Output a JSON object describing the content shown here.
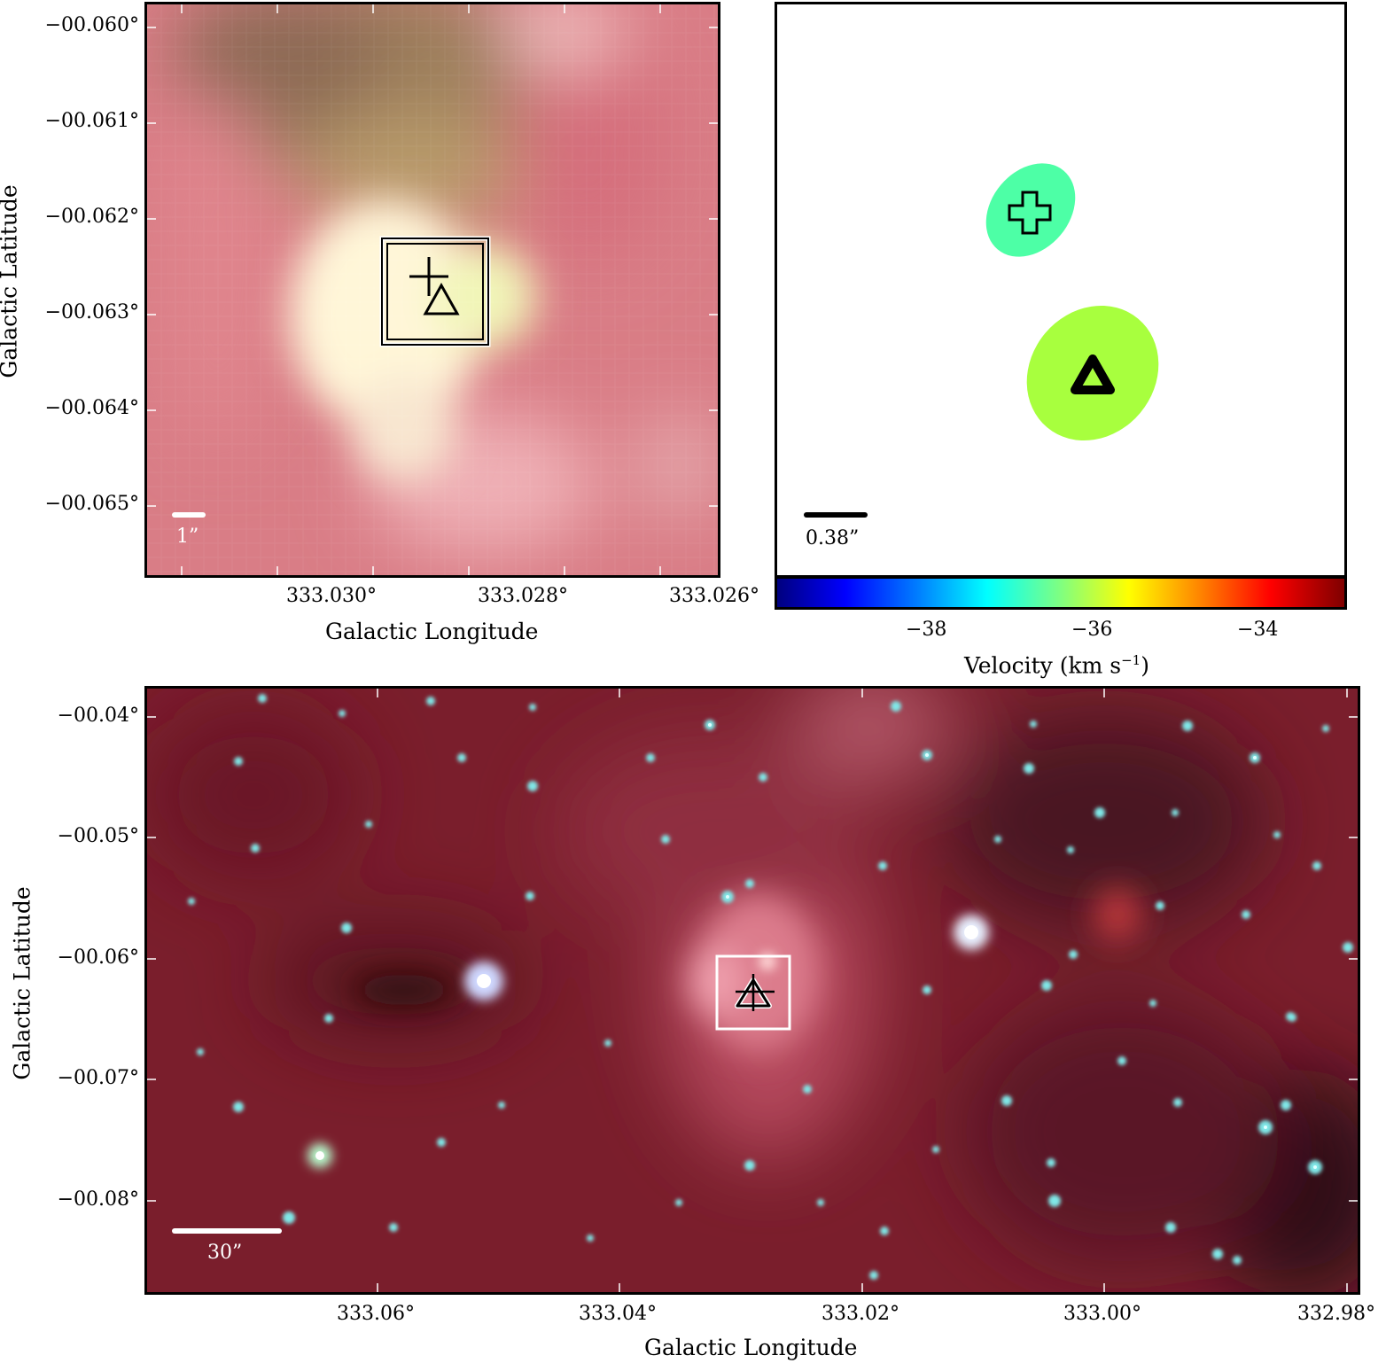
{
  "top_left": {
    "y_ticks": [
      "−00.060°",
      "−00.061°",
      "−00.062°",
      "−00.063°",
      "−00.064°",
      "−00.065°"
    ],
    "x_ticks": [
      "333.030°",
      "333.028°",
      "333.026°"
    ],
    "xlabel": "Galactic Longitude",
    "ylabel": "Galactic Latitude",
    "scale_label": "1”"
  },
  "top_right": {
    "scale_label": "0.38”",
    "colorbar": {
      "ticks": [
        "−38",
        "−36",
        "−34"
      ],
      "label": "Velocity (km s",
      "label_sup": "−1",
      "label_end": ")",
      "colormap": "jet"
    },
    "markers": [
      {
        "symbol": "plus-icon",
        "color": "#4dffa6"
      },
      {
        "symbol": "triangle-icon",
        "color": "#a8ff3e"
      }
    ]
  },
  "bottom": {
    "y_ticks": [
      "−00.04°",
      "−00.05°",
      "−00.06°",
      "−00.07°",
      "−00.08°"
    ],
    "x_ticks": [
      "333.06°",
      "333.04°",
      "333.02°",
      "333.00°",
      "332.98°"
    ],
    "xlabel": "Galactic Longitude",
    "ylabel": "Galactic Latitude",
    "scale_label": "30”"
  }
}
